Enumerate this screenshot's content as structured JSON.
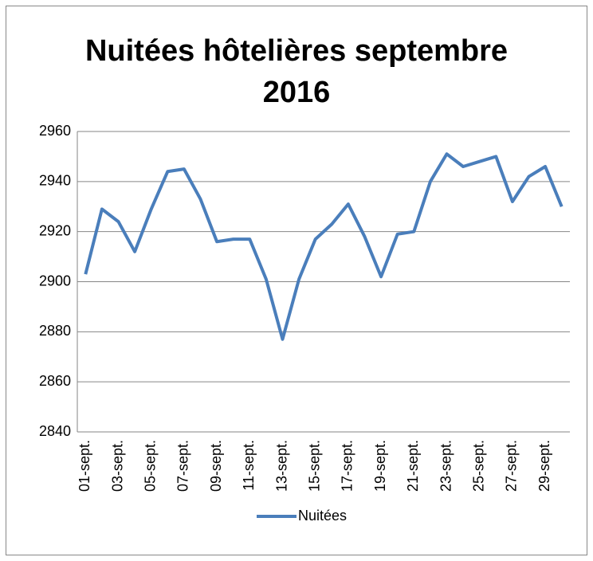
{
  "chart_data": {
    "type": "line",
    "title": "Nuitées hôtelières septembre 2016",
    "categories": [
      "01-sept.",
      null,
      "03-sept.",
      null,
      "05-sept.",
      null,
      "07-sept.",
      null,
      "09-sept.",
      null,
      "11-sept.",
      null,
      "13-sept.",
      null,
      "15-sept.",
      null,
      "17-sept.",
      null,
      "19-sept.",
      null,
      "21-sept.",
      null,
      "23-sept.",
      null,
      "25-sept.",
      null,
      "27-sept.",
      null,
      "29-sept.",
      null
    ],
    "series": [
      {
        "name": "Nuitées",
        "color": "#4a7ebb",
        "values": [
          2903,
          2929,
          2924,
          2912,
          2929,
          2944,
          2945,
          2933,
          2916,
          2917,
          2917,
          2901,
          2877,
          2901,
          2917,
          2923,
          2931,
          2918,
          2902,
          2919,
          2920,
          2940,
          2951,
          2946,
          2948,
          2950,
          2932,
          2942,
          2946,
          2930
        ]
      }
    ],
    "ylim": [
      2840,
      2960
    ],
    "yticks": [
      2840,
      2860,
      2880,
      2900,
      2920,
      2940,
      2960
    ],
    "grid": true,
    "legend": "bottom"
  }
}
